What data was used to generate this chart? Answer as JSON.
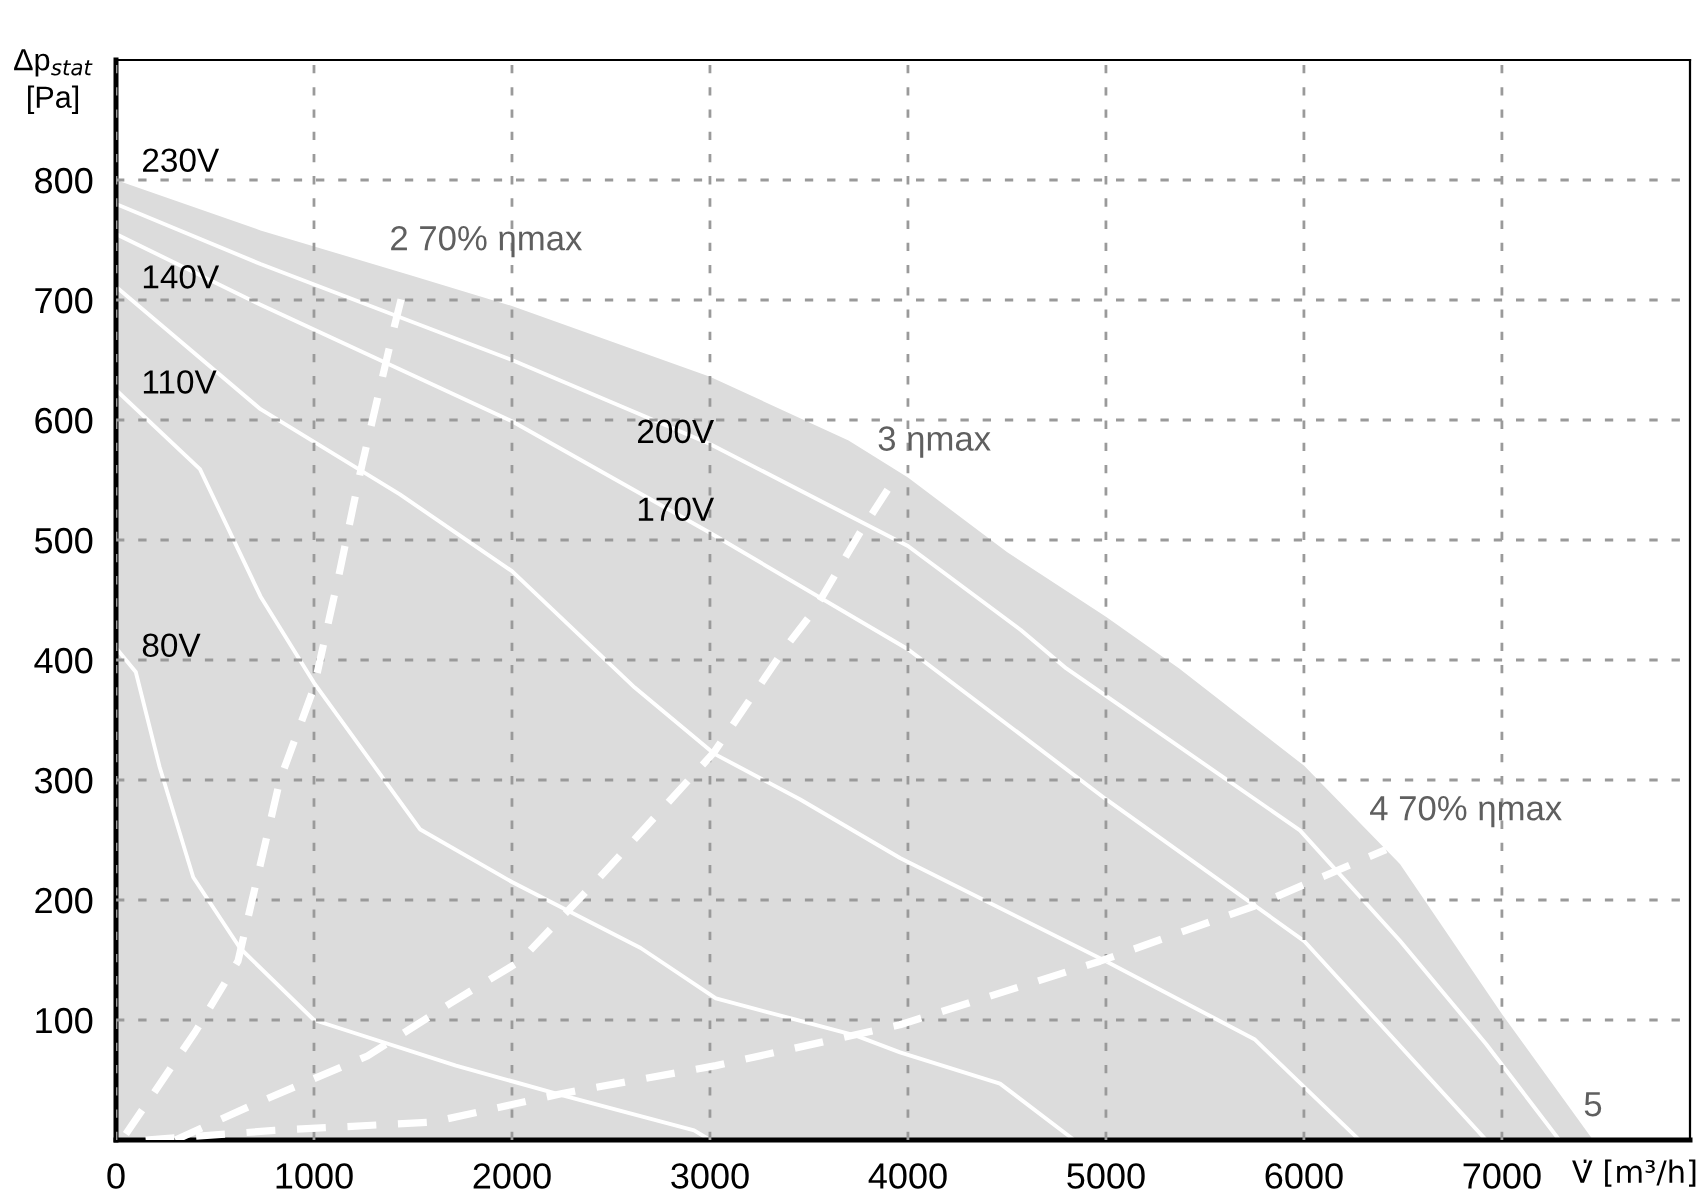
{
  "chart_data": {
    "type": "line",
    "xlabel": "V̇ [m³/h]",
    "ylabel": "Δp$_{stat}$\n[Pa]",
    "xlim": [
      0,
      7950
    ],
    "ylim": [
      0,
      900
    ],
    "xticks": [
      0,
      1000,
      2000,
      3000,
      4000,
      5000,
      6000,
      7000
    ],
    "yticks": [
      100,
      200,
      300,
      400,
      500,
      600,
      700,
      800
    ],
    "grid": true,
    "legend": false,
    "series": [
      {
        "name": "230V",
        "type": "area",
        "color": "#dcdcdc",
        "x": [
          0,
          730,
          1500,
          2000,
          3000,
          3700,
          4000,
          4500,
          5000,
          5370,
          6000,
          6485,
          7000,
          7460
        ],
        "values": [
          800,
          758,
          720,
          695,
          636,
          583,
          552,
          490,
          436,
          393,
          312,
          230,
          105,
          0
        ]
      },
      {
        "name": "200V",
        "type": "line",
        "color": "#ffffff",
        "x": [
          0,
          730,
          2000,
          3000,
          4000,
          4570,
          4800,
          5980,
          6485,
          6920,
          7290
        ],
        "values": [
          780,
          730,
          650,
          580,
          495,
          425,
          393,
          258,
          166,
          80,
          0
        ]
      },
      {
        "name": "170V",
        "type": "line",
        "color": "#ffffff",
        "x": [
          0,
          730,
          2000,
          3000,
          4000,
          5000,
          6000,
          6920
        ],
        "values": [
          755,
          696,
          599,
          506,
          409,
          284,
          166,
          0
        ]
      },
      {
        "name": "140V",
        "type": "line",
        "color": "#ffffff",
        "x": [
          0,
          730,
          1434,
          2000,
          2620,
          3020,
          3454,
          3960,
          5000,
          5750,
          6280
        ],
        "values": [
          711,
          609,
          538,
          474,
          377,
          322,
          284,
          235,
          149,
          84,
          0
        ]
      },
      {
        "name": "110V",
        "type": "line",
        "color": "#ffffff",
        "x": [
          0,
          424,
          730,
          1000,
          1535,
          2000,
          2650,
          3030,
          3737,
          3960,
          4465,
          4840
        ],
        "values": [
          625,
          559,
          453,
          381,
          259,
          215,
          160,
          118,
          87,
          73,
          47,
          0
        ]
      },
      {
        "name": "80V",
        "type": "line",
        "color": "#ffffff",
        "x": [
          0,
          100,
          220,
          390,
          626,
          1000,
          1717,
          2260,
          2920,
          3000
        ],
        "values": [
          410,
          390,
          311,
          219,
          160,
          100,
          62,
          37,
          8,
          0
        ]
      },
      {
        "name": "2 70% ηmax",
        "type": "line",
        "line_style": "dashed",
        "color": "#ffffff",
        "x": [
          50,
          400,
          616,
          828,
          1000,
          1130,
          1232,
          1400,
          1465
        ],
        "values": [
          5,
          90,
          149,
          300,
          377,
          474,
          555,
          674,
          717
        ]
      },
      {
        "name": "3 ηmax",
        "type": "line",
        "line_style": "dashed",
        "color": "#ffffff",
        "x": [
          300,
          700,
          1270,
          1700,
          2040,
          2444,
          3020,
          3384,
          3525,
          3757,
          3929
        ],
        "values": [
          0,
          30,
          70,
          115,
          149,
          219,
          323,
          411,
          441,
          506,
          550
        ]
      },
      {
        "name": "4 70% ηmax",
        "type": "line",
        "line_style": "dashed",
        "color": "#ffffff",
        "x": [
          150,
          800,
          1600,
          2260,
          3030,
          3960,
          4970,
          5750,
          6414
        ],
        "values": [
          0,
          8,
          15,
          39,
          62,
          96,
          149,
          195,
          242
        ]
      }
    ],
    "annotations": [
      {
        "text": "5",
        "x": 7460,
        "y": 0
      }
    ]
  }
}
